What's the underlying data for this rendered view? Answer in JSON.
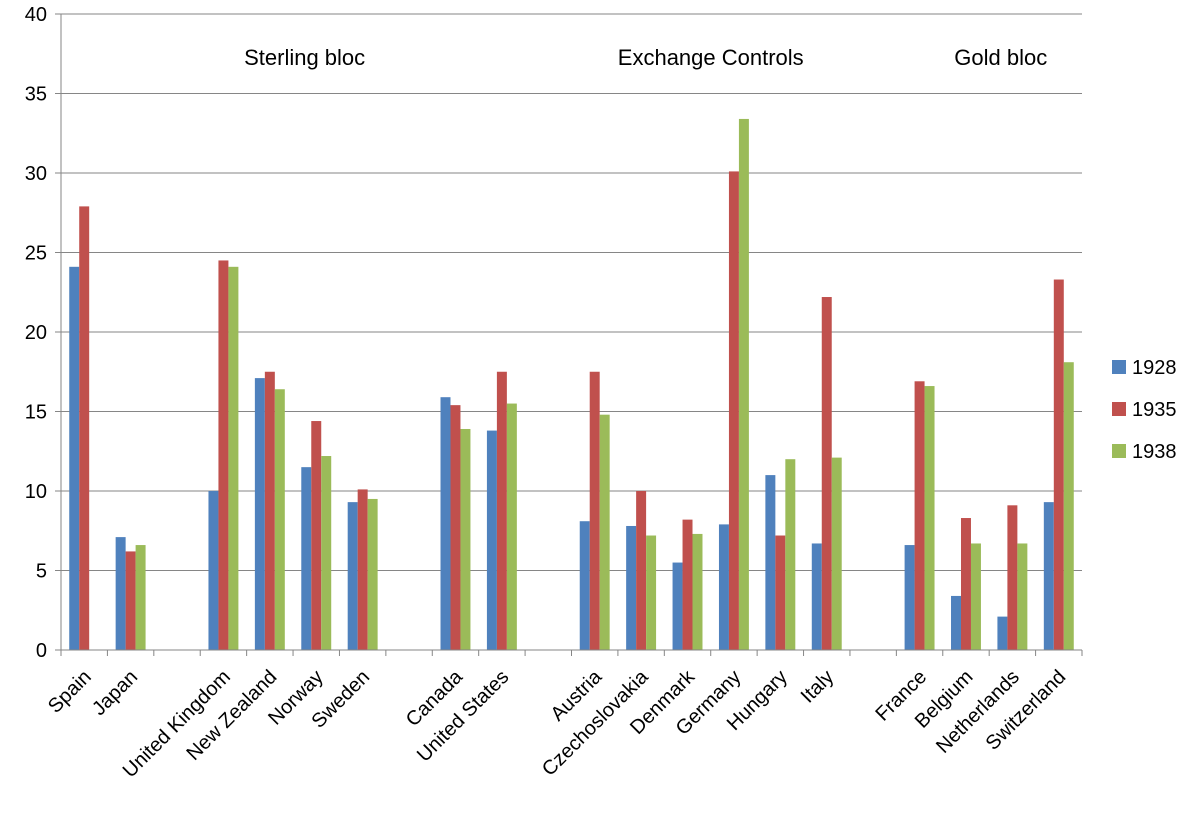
{
  "chart_data": {
    "type": "bar",
    "title": "",
    "xlabel": "",
    "ylabel": "",
    "ylim": [
      0,
      40
    ],
    "yticks": [
      0,
      5,
      10,
      15,
      20,
      25,
      30,
      35,
      40
    ],
    "grid": true,
    "legend_position": "right",
    "categories": [
      "Spain",
      "Japan",
      "",
      "United Kingdom",
      "New Zealand",
      "Norway",
      "Sweden",
      "",
      "Canada",
      "United States",
      "",
      "Austria",
      "Czechoslovakia",
      "Denmark",
      "Germany",
      "Hungary",
      "Italy",
      "",
      "France",
      "Belgium",
      "Netherlands",
      "Switzerland"
    ],
    "series": [
      {
        "name": "1928",
        "color": "#4f81bd",
        "values": [
          24.1,
          7.1,
          null,
          10.0,
          17.1,
          11.5,
          9.3,
          null,
          15.9,
          13.8,
          null,
          8.1,
          7.8,
          5.5,
          7.9,
          11.0,
          6.7,
          null,
          6.6,
          3.4,
          2.1,
          9.3
        ]
      },
      {
        "name": "1935",
        "color": "#c0504d",
        "values": [
          27.9,
          6.2,
          null,
          24.5,
          17.5,
          14.4,
          10.1,
          null,
          15.4,
          17.5,
          null,
          17.5,
          10.0,
          8.2,
          30.1,
          7.2,
          22.2,
          null,
          16.9,
          8.3,
          9.1,
          23.3
        ]
      },
      {
        "name": "1938",
        "color": "#9bbb59",
        "values": [
          null,
          6.6,
          null,
          24.1,
          16.4,
          12.2,
          9.5,
          null,
          13.9,
          15.5,
          null,
          14.8,
          7.2,
          7.3,
          33.4,
          12.0,
          12.1,
          null,
          16.6,
          6.7,
          6.7,
          18.1
        ]
      }
    ],
    "annotations": [
      {
        "text": "Sterling bloc",
        "category_index": 4.75
      },
      {
        "text": "Exchange Controls",
        "category_index": 13.5
      },
      {
        "text": "Gold bloc",
        "category_index": 19.75
      }
    ]
  }
}
